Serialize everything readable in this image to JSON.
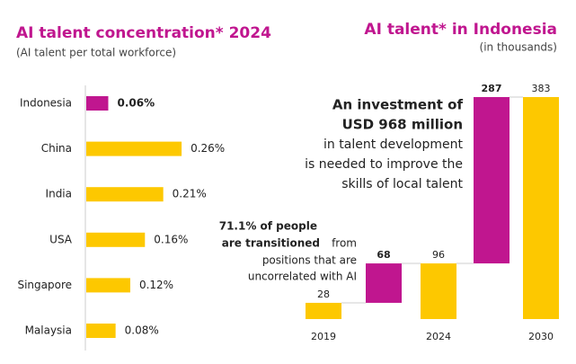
{
  "chart_data": [
    {
      "type": "hbar",
      "title": "AI talent concentration* 2024",
      "subtitle": "(AI talent per total workforce)",
      "categories": [
        "Indonesia",
        "China",
        "India",
        "USA",
        "Singapore",
        "Malaysia"
      ],
      "values": [
        0.06,
        0.26,
        0.21,
        0.16,
        0.12,
        0.08
      ],
      "value_labels": [
        "0.06%",
        "0.26%",
        "0.21%",
        "0.16%",
        "0.12%",
        "0.08%"
      ],
      "colors": [
        "#c0168f",
        "#fdc800",
        "#fdc800",
        "#fdc800",
        "#fdc800",
        "#fdc800"
      ]
    },
    {
      "type": "waterfall",
      "title": "AI talent* in Indonesia",
      "subtitle": "(in thousands)",
      "categories": [
        "2019",
        null,
        "2024",
        null,
        "2030"
      ],
      "values": [
        28,
        68,
        96,
        287,
        383
      ],
      "measure": [
        "total",
        "increase",
        "total",
        "increase",
        "total"
      ],
      "colors": [
        "#fdc800",
        "#c0168f",
        "#fdc800",
        "#c0168f",
        "#fdc800"
      ],
      "annotations": [
        {
          "bold": [
            "An investment of",
            "USD 968 million"
          ],
          "text": [
            "in talent development",
            "is needed to improve the",
            "skills of local talent"
          ]
        },
        {
          "bold": [
            "71.1% of people",
            "are transitioned"
          ],
          "text": [
            "from",
            "positions that are",
            "uncorrelated with AI"
          ]
        }
      ]
    }
  ]
}
